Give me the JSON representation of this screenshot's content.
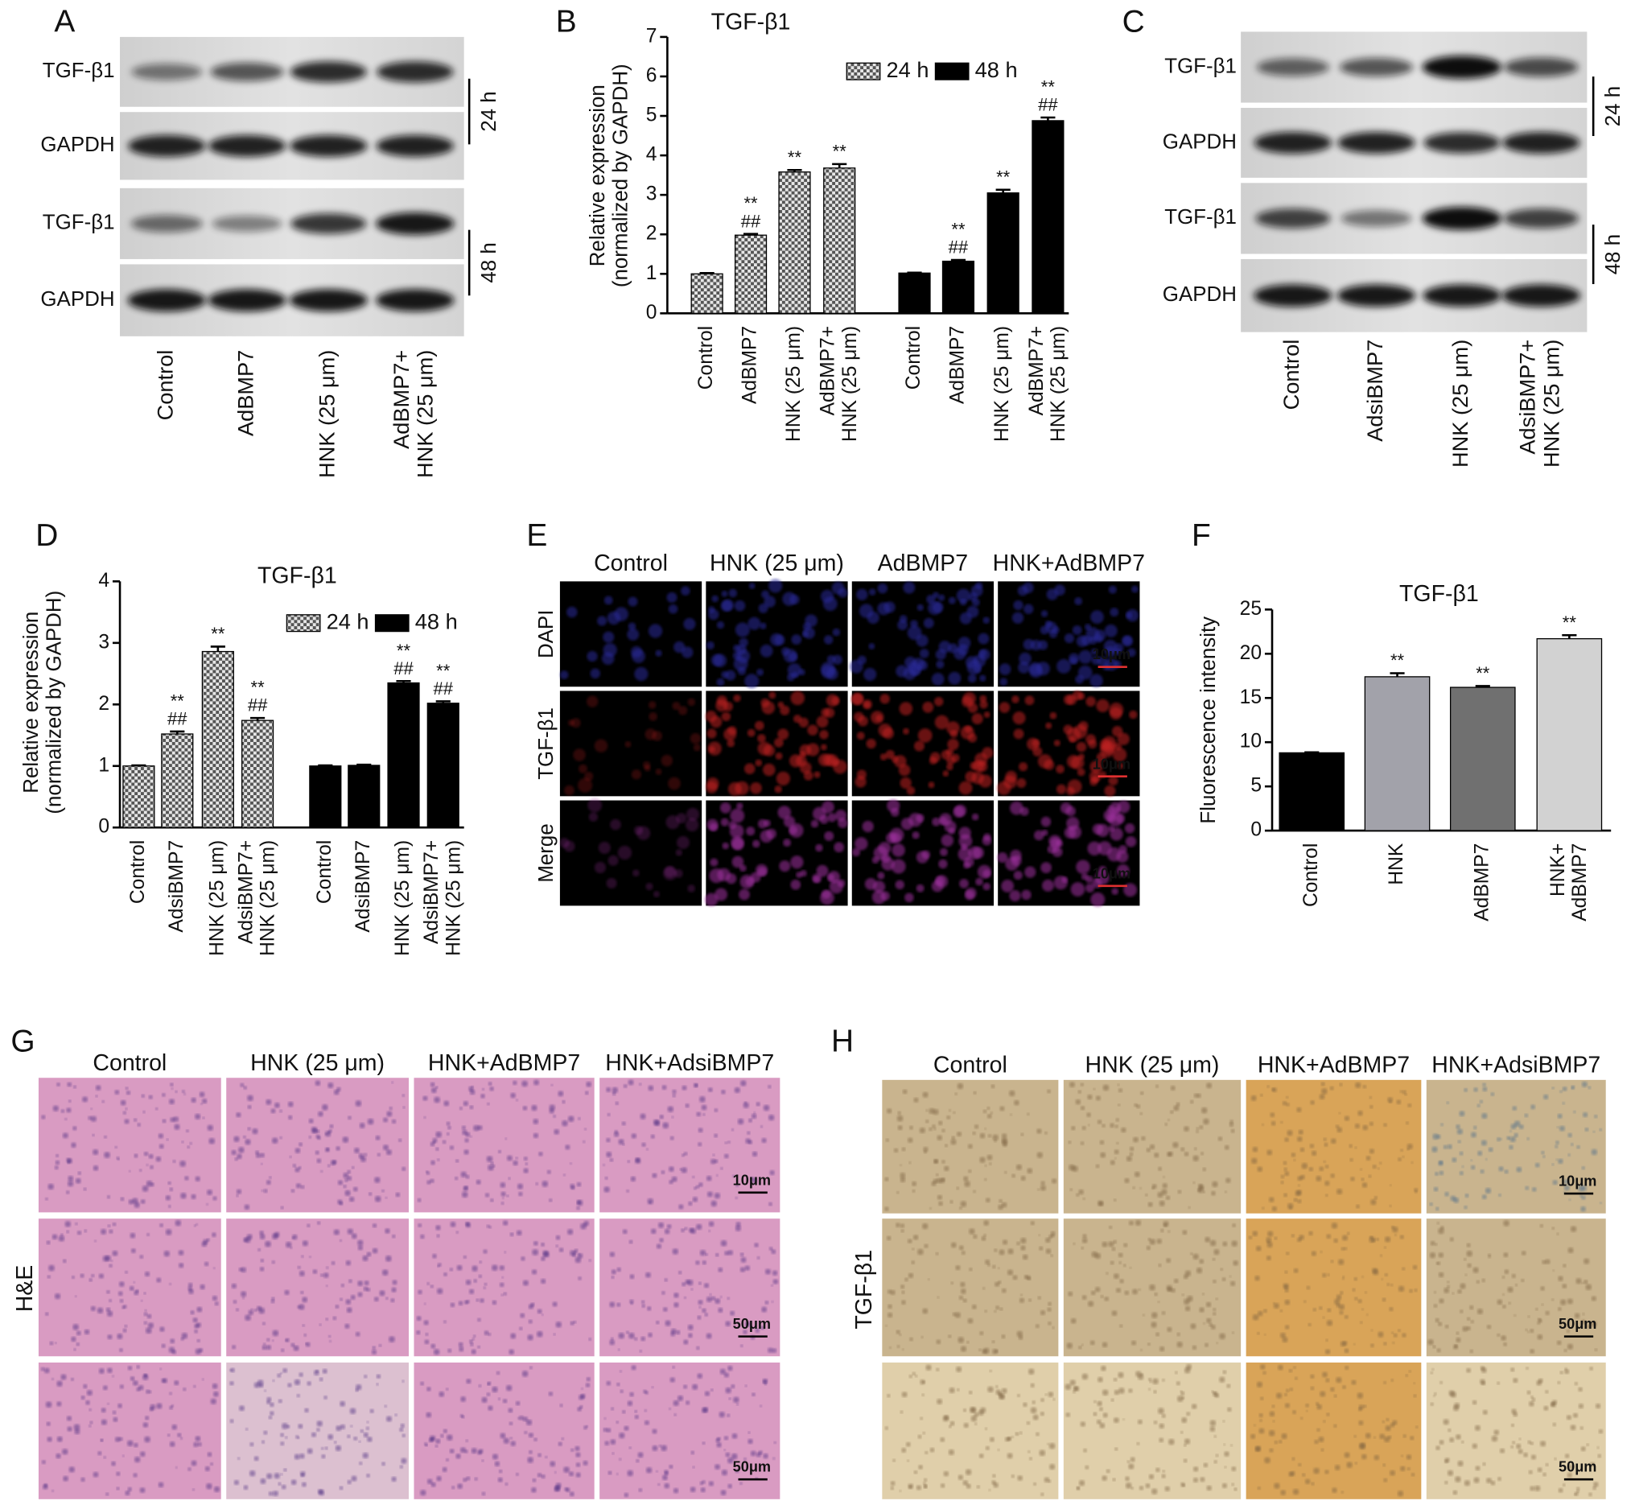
{
  "blot_A": {
    "letter": "A",
    "rows": [
      "TGF-β1",
      "GAPDH",
      "TGF-β1",
      "GAPDH"
    ],
    "times": [
      "24 h",
      "48 h"
    ],
    "lanes": [
      "Control",
      "AdBMP7",
      "HNK (25 μm)",
      "AdBMP7+\nHNK (25 μm)"
    ]
  },
  "blot_C": {
    "letter": "C",
    "rows": [
      "TGF-β1",
      "GAPDH",
      "TGF-β1",
      "GAPDH"
    ],
    "times": [
      "24 h",
      "48 h"
    ],
    "lanes": [
      "Control",
      "AdsiBMP7",
      "HNK (25 μm)",
      "AdsiBMP7+\nHNK (25 μm)"
    ]
  },
  "image_E": {
    "letter": "E",
    "columns": [
      "Control",
      "HNK (25 μm)",
      "AdBMP7",
      "HNK+AdBMP7"
    ],
    "rows": [
      "DAPI",
      "TGF-β1",
      "Merge"
    ],
    "scale_bars": [
      "10μm",
      "10μm",
      "10μm"
    ]
  },
  "image_G": {
    "letter": "G",
    "columns": [
      "Control",
      "HNK (25 μm)",
      "HNK+AdBMP7",
      "HNK+AdsiBMP7"
    ],
    "row_label": "H&E",
    "scale_bars": [
      "10μm",
      "50μm",
      "50μm"
    ]
  },
  "image_H": {
    "letter": "H",
    "columns": [
      "Control",
      "HNK (25 μm)",
      "HNK+AdBMP7",
      "HNK+AdsiBMP7"
    ],
    "row_label": "TGF-β1",
    "scale_bars": [
      "10μm",
      "50μm",
      "50μm"
    ]
  },
  "chart_data": [
    {
      "type": "bar",
      "letter": "B",
      "title": "TGF-β1",
      "y_label": "Relative expression\n(normalized by GAPDH)",
      "categories": [
        "Control",
        "AdBMP7",
        "HNK (25 μm)",
        "AdBMP7+\nHNK (25 μm)"
      ],
      "series": [
        {
          "name": "24 h",
          "color": "#9a9a9a",
          "pattern": "checker",
          "values": [
            1.0,
            1.98,
            3.58,
            3.68
          ],
          "errors": [
            0.02,
            0.03,
            0.05,
            0.1
          ],
          "annotations": [
            null,
            [
              "**",
              "##"
            ],
            [
              "**"
            ],
            [
              "**"
            ]
          ]
        },
        {
          "name": "48 h",
          "color": "#000000",
          "values": [
            1.02,
            1.32,
            3.05,
            4.88
          ],
          "errors": [
            0.01,
            0.03,
            0.08,
            0.08
          ],
          "annotations": [
            null,
            [
              "**",
              "##"
            ],
            [
              "**"
            ],
            [
              "**",
              "##"
            ]
          ]
        }
      ],
      "ylim": [
        0,
        7
      ],
      "yticks": [
        0,
        1,
        2,
        3,
        4,
        5,
        6,
        7
      ],
      "grid": false,
      "legend": "top-right"
    },
    {
      "type": "bar",
      "letter": "D",
      "title": "TGF-β1",
      "y_label": "Relative expression\n(normalized by GAPDH)",
      "categories": [
        "Control",
        "AdsiBMP7",
        "HNK (25 μm)",
        "AdsiBMP7+\nHNK (25 μm)"
      ],
      "series": [
        {
          "name": "24 h",
          "color": "#9a9a9a",
          "pattern": "checker",
          "values": [
            1.0,
            1.52,
            2.86,
            1.74
          ],
          "errors": [
            0.01,
            0.04,
            0.08,
            0.04
          ],
          "annotations": [
            null,
            [
              "**",
              "##"
            ],
            [
              "**"
            ],
            [
              "**",
              "##"
            ]
          ]
        },
        {
          "name": "48 h",
          "color": "#000000",
          "values": [
            1.0,
            1.01,
            2.35,
            2.02
          ],
          "errors": [
            0.01,
            0.01,
            0.03,
            0.03
          ],
          "annotations": [
            null,
            null,
            [
              "**",
              "##"
            ],
            [
              "**",
              "##"
            ]
          ]
        }
      ],
      "ylim": [
        0,
        4
      ],
      "yticks": [
        0,
        1,
        2,
        3,
        4
      ],
      "grid": false,
      "legend": "top-right"
    },
    {
      "type": "bar",
      "letter": "F",
      "title": "TGF-β1",
      "y_label": "Fluorescence intensity",
      "categories": [
        "Control",
        "HNK",
        "AdBMP7",
        "HNK+\nAdBMP7"
      ],
      "series": [
        {
          "colors": [
            "#000000",
            "#a2a2aa",
            "#707070",
            "#d2d2d2"
          ],
          "values": [
            8.8,
            17.4,
            16.2,
            21.7
          ],
          "errors": [
            0.05,
            0.4,
            0.15,
            0.4
          ],
          "annotations": [
            null,
            [
              "**"
            ],
            [
              "**"
            ],
            [
              "**"
            ]
          ]
        }
      ],
      "ylim": [
        0,
        25
      ],
      "yticks": [
        0,
        5,
        10,
        15,
        20,
        25
      ],
      "grid": false
    }
  ]
}
